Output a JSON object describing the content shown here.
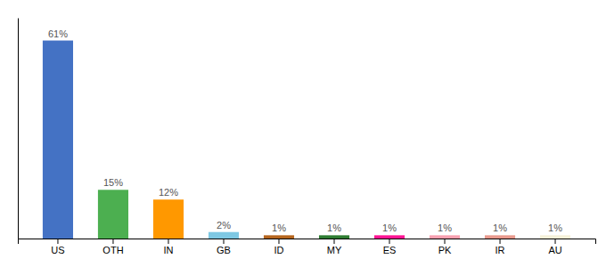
{
  "chart_data": {
    "type": "bar",
    "categories": [
      "US",
      "OTH",
      "IN",
      "GB",
      "ID",
      "MY",
      "ES",
      "PK",
      "IR",
      "AU"
    ],
    "values": [
      61,
      15,
      12,
      2,
      1,
      1,
      1,
      1,
      1,
      1
    ],
    "value_labels": [
      "61%",
      "15%",
      "12%",
      "2%",
      "1%",
      "1%",
      "1%",
      "1%",
      "1%",
      "1%"
    ],
    "colors": [
      "#4472c4",
      "#4caf50",
      "#ff9800",
      "#7ec8e3",
      "#b5651d",
      "#2e7d32",
      "#ff1493",
      "#f8a0b0",
      "#e8998d",
      "#f5f0d8"
    ],
    "ylim": [
      0,
      68
    ],
    "data_labels": true,
    "tick_labels": "x",
    "grid": false
  }
}
